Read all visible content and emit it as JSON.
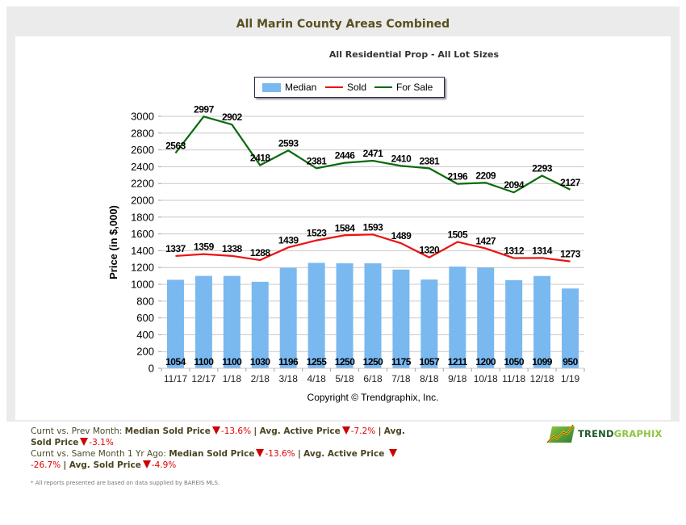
{
  "header": {
    "title": "All Marin County Areas Combined",
    "subtitle": "All Residential Prop - All Lot Sizes"
  },
  "legend": {
    "median": "Median",
    "sold": "Sold",
    "for_sale": "For Sale"
  },
  "copyright": "Copyright © Trendgraphix, Inc.",
  "chart_data": {
    "type": "bar",
    "title": "All Residential Prop - All Lot Sizes",
    "xlabel": "",
    "ylabel": "Price (in $,000)",
    "ylim": [
      0,
      3000
    ],
    "yticks": [
      0,
      200,
      400,
      600,
      800,
      1000,
      1200,
      1400,
      1600,
      1800,
      2000,
      2200,
      2400,
      2600,
      2800,
      3000
    ],
    "grid": true,
    "legend_position": "top-center",
    "categories": [
      "11/17",
      "12/17",
      "1/18",
      "2/18",
      "3/18",
      "4/18",
      "5/18",
      "6/18",
      "7/18",
      "8/18",
      "9/18",
      "10/18",
      "11/18",
      "12/18",
      "1/19"
    ],
    "series": [
      {
        "name": "Median",
        "type": "bar",
        "color": "#7ab8f0",
        "values": [
          1054,
          1100,
          1100,
          1030,
          1196,
          1255,
          1250,
          1250,
          1175,
          1057,
          1211,
          1200,
          1050,
          1099,
          950
        ]
      },
      {
        "name": "Sold",
        "type": "line",
        "color": "#ee1111",
        "values": [
          1337,
          1359,
          1338,
          1288,
          1439,
          1523,
          1584,
          1593,
          1489,
          1320,
          1505,
          1427,
          1312,
          1314,
          1273
        ]
      },
      {
        "name": "For Sale",
        "type": "line",
        "color": "#0a6a0a",
        "values": [
          2563,
          2997,
          2902,
          2418,
          2593,
          2381,
          2446,
          2471,
          2410,
          2381,
          2196,
          2209,
          2094,
          2293,
          2127
        ]
      }
    ]
  },
  "summary": {
    "prev_month": {
      "label": "Curnt vs. Prev Month:",
      "median_label": "Median Sold Price",
      "median_value": "-13.6%",
      "active_label": "Avg. Active Price",
      "active_value": "-7.2%",
      "sold_label": "Avg. Sold Price",
      "sold_value": "-3.1%"
    },
    "year_ago": {
      "label": "Curnt vs. Same Month 1 Yr Ago:",
      "median_label": "Median Sold Price",
      "median_value": "-13.6%",
      "active_label": "Avg. Active Price",
      "active_value": "-26.7%",
      "sold_label": "Avg. Sold Price",
      "sold_value": "-4.9%"
    },
    "separator": "|"
  },
  "footnote": "* All reports presented are based on data supplied by BAREIS MLS.",
  "logo": {
    "part1": "TREND",
    "part2": "GRAPHIX"
  }
}
